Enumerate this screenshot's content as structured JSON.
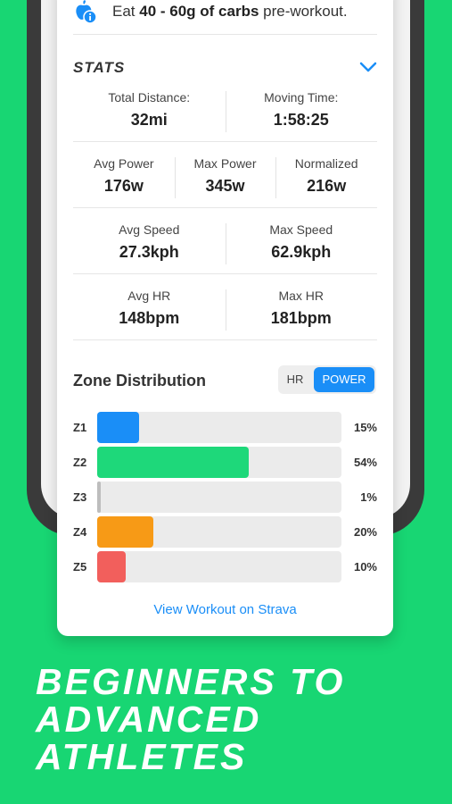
{
  "colors": {
    "background": "#18d673",
    "accent": "#1a8ef7",
    "z1": "#1a8ef7",
    "z2": "#1ed87a",
    "z3": "#bdbdbd",
    "z4": "#f79a16",
    "z5": "#f25f5c"
  },
  "tip": {
    "icon": "apple-info-icon",
    "prefix": "Eat ",
    "bold": "40 - 60g of carbs",
    "suffix": " pre-workout."
  },
  "stats": {
    "title": "STATS",
    "toggle_icon": "chevron-down-icon",
    "rows": [
      [
        {
          "label": "Total Distance:",
          "value": "32mi"
        },
        {
          "label": "Moving Time:",
          "value": "1:58:25"
        }
      ],
      [
        {
          "label": "Avg Power",
          "value": "176w"
        },
        {
          "label": "Max Power",
          "value": "345w"
        },
        {
          "label": "Normalized",
          "value": "216w"
        }
      ],
      [
        {
          "label": "Avg Speed",
          "value": "27.3kph"
        },
        {
          "label": "Max Speed",
          "value": "62.9kph"
        }
      ],
      [
        {
          "label": "Avg HR",
          "value": "148bpm"
        },
        {
          "label": "Max HR",
          "value": "181bpm"
        }
      ]
    ]
  },
  "zones": {
    "title": "Zone Distribution",
    "toggle": {
      "hr": "HR",
      "power": "POWER",
      "selected": "POWER"
    },
    "items": [
      {
        "label": "Z1",
        "percent": 15,
        "percent_label": "15%"
      },
      {
        "label": "Z2",
        "percent": 54,
        "percent_label": "54%"
      },
      {
        "label": "Z3",
        "percent": 1,
        "percent_label": "1%"
      },
      {
        "label": "Z4",
        "percent": 20,
        "percent_label": "20%"
      },
      {
        "label": "Z5",
        "percent": 10,
        "percent_label": "10%"
      }
    ]
  },
  "link": "View Workout on Strava",
  "headline": [
    "BEGINNERS TO",
    "ADVANCED",
    "ATHLETES"
  ]
}
